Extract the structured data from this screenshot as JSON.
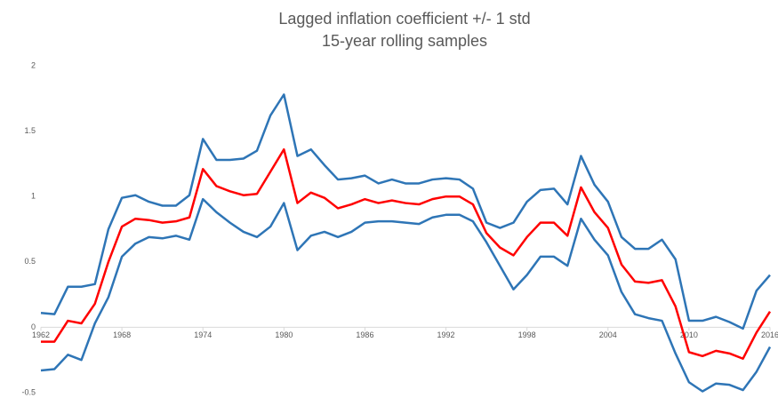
{
  "chart_data": {
    "type": "line",
    "title": "Lagged inflation coefficient +/- 1 std",
    "subtitle": "15-year rolling samples",
    "x": [
      1962,
      1963,
      1964,
      1965,
      1966,
      1967,
      1968,
      1969,
      1970,
      1971,
      1972,
      1973,
      1974,
      1975,
      1976,
      1977,
      1978,
      1979,
      1980,
      1981,
      1982,
      1983,
      1984,
      1985,
      1986,
      1987,
      1988,
      1989,
      1990,
      1991,
      1992,
      1993,
      1994,
      1995,
      1996,
      1997,
      1998,
      1999,
      2000,
      2001,
      2002,
      2003,
      2004,
      2005,
      2006,
      2007,
      2008,
      2009,
      2010,
      2011,
      2012,
      2013,
      2014,
      2015,
      2016
    ],
    "xlim": [
      1962,
      2016
    ],
    "xticks": [
      1962,
      1968,
      1974,
      1980,
      1986,
      1992,
      1998,
      2004,
      2010,
      2016
    ],
    "ylim": [
      -0.5,
      2
    ],
    "yticks": [
      -0.5,
      0,
      0.5,
      1,
      1.5,
      2
    ],
    "grid": false,
    "series": [
      {
        "color": "#2e75b6",
        "values": [
          0.11,
          0.1,
          0.31,
          0.31,
          0.33,
          0.75,
          0.99,
          1.01,
          0.96,
          0.93,
          0.93,
          1.01,
          1.44,
          1.28,
          1.28,
          1.29,
          1.35,
          1.62,
          1.78,
          1.31,
          1.36,
          1.24,
          1.13,
          1.14,
          1.16,
          1.1,
          1.13,
          1.1,
          1.1,
          1.13,
          1.14,
          1.13,
          1.06,
          0.8,
          0.76,
          0.8,
          0.96,
          1.05,
          1.06,
          0.94,
          1.31,
          1.09,
          0.96,
          0.69,
          0.6,
          0.6,
          0.67,
          0.52,
          0.05,
          0.05,
          0.08,
          0.04,
          -0.01,
          0.28,
          0.4
        ]
      },
      {
        "color": "#ff0000",
        "values": [
          -0.11,
          -0.11,
          0.05,
          0.03,
          0.18,
          0.5,
          0.77,
          0.83,
          0.82,
          0.8,
          0.81,
          0.84,
          1.21,
          1.08,
          1.04,
          1.01,
          1.02,
          1.19,
          1.36,
          0.95,
          1.03,
          0.99,
          0.91,
          0.94,
          0.98,
          0.95,
          0.97,
          0.95,
          0.94,
          0.98,
          1.0,
          1.0,
          0.94,
          0.72,
          0.61,
          0.55,
          0.69,
          0.8,
          0.8,
          0.7,
          1.07,
          0.88,
          0.76,
          0.48,
          0.35,
          0.34,
          0.36,
          0.16,
          -0.19,
          -0.22,
          -0.18,
          -0.2,
          -0.24,
          -0.04,
          0.12
        ]
      },
      {
        "color": "#2e75b6",
        "values": [
          -0.33,
          -0.32,
          -0.21,
          -0.25,
          0.03,
          0.23,
          0.54,
          0.64,
          0.69,
          0.68,
          0.7,
          0.67,
          0.98,
          0.88,
          0.8,
          0.73,
          0.69,
          0.77,
          0.95,
          0.59,
          0.7,
          0.73,
          0.69,
          0.73,
          0.8,
          0.81,
          0.81,
          0.8,
          0.79,
          0.84,
          0.86,
          0.86,
          0.81,
          0.65,
          0.47,
          0.29,
          0.4,
          0.54,
          0.54,
          0.47,
          0.83,
          0.67,
          0.55,
          0.27,
          0.1,
          0.07,
          0.05,
          -0.2,
          -0.42,
          -0.49,
          -0.43,
          -0.44,
          -0.48,
          -0.34,
          -0.15
        ]
      }
    ]
  }
}
